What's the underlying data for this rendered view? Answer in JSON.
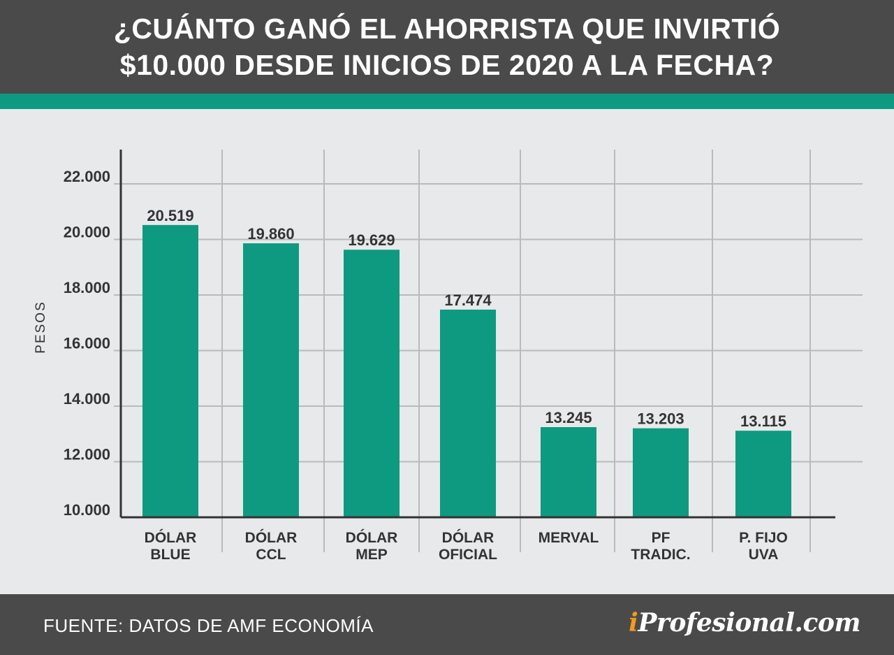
{
  "header": {
    "title_line1": "¿CUÁNTO GANÓ EL AHORRISTA QUE INVIRTIÓ",
    "title_line2": "$10.000 DESDE INICIOS DE 2020 A LA FECHA?"
  },
  "footer": {
    "source": "FUENTE: DATOS DE AMF ECONOMÍA",
    "brand_prefix": "i",
    "brand_rest": "Profesional.com"
  },
  "colors": {
    "bar": "#0e9a80",
    "header_bg": "#4a4a4a",
    "background": "#e8e9ea",
    "brand_accent": "#f29a1f",
    "text": "#333333"
  },
  "chart_data": {
    "type": "bar",
    "ylabel": "PESOS",
    "xlabel": "",
    "ylim": [
      10000,
      22000
    ],
    "yticks": [
      10000,
      12000,
      14000,
      16000,
      18000,
      20000,
      22000
    ],
    "ytick_labels": [
      "10.000",
      "12.000",
      "14.000",
      "16.000",
      "18.000",
      "20.000",
      "22.000"
    ],
    "grid": true,
    "categories": [
      [
        "DÓLAR",
        "BLUE"
      ],
      [
        "DÓLAR",
        "CCL"
      ],
      [
        "DÓLAR",
        "MEP"
      ],
      [
        "DÓLAR",
        "OFICIAL"
      ],
      [
        "MERVAL"
      ],
      [
        "PF",
        "TRADIC."
      ],
      [
        "P. FIJO",
        "UVA"
      ]
    ],
    "values": [
      20519,
      19860,
      19629,
      17474,
      13245,
      13203,
      13115
    ],
    "value_labels": [
      "20.519",
      "19.860",
      "19.629",
      "17.474",
      "13.245",
      "13.203",
      "13.115"
    ]
  }
}
